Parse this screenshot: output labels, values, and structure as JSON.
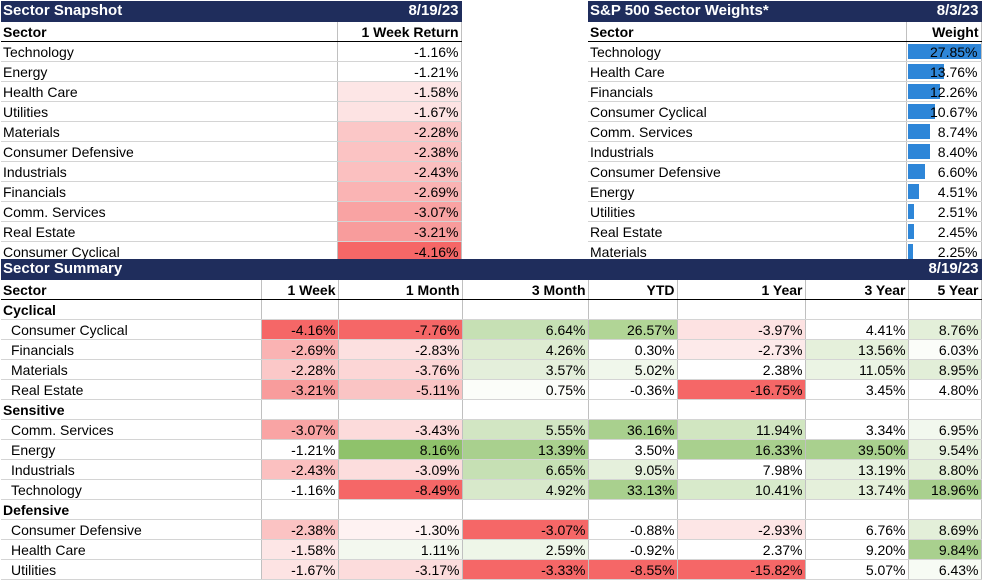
{
  "snapshot": {
    "title": "Sector Snapshot",
    "date": "8/19/23",
    "col_sector": "Sector",
    "col_return": "1 Week Return",
    "rows": [
      {
        "sector": "Technology",
        "value": "-1.16%",
        "color": "#ffffff"
      },
      {
        "sector": "Energy",
        "value": "-1.21%",
        "color": "#ffffff"
      },
      {
        "sector": "Health Care",
        "value": "-1.58%",
        "color": "#fde6e6"
      },
      {
        "sector": "Utilities",
        "value": "-1.67%",
        "color": "#fde3e3"
      },
      {
        "sector": "Materials",
        "value": "-2.28%",
        "color": "#fbc7c7"
      },
      {
        "sector": "Consumer Defensive",
        "value": "-2.38%",
        "color": "#fbc3c3"
      },
      {
        "sector": "Industrials",
        "value": "-2.43%",
        "color": "#fbc0c0"
      },
      {
        "sector": "Financials",
        "value": "-2.69%",
        "color": "#fab4b4"
      },
      {
        "sector": "Comm. Services",
        "value": "-3.07%",
        "color": "#f9a3a3"
      },
      {
        "sector": "Real Estate",
        "value": "-3.21%",
        "color": "#f89c9c"
      },
      {
        "sector": "Consumer Cyclical",
        "value": "-4.16%",
        "color": "#f56767"
      }
    ]
  },
  "weights": {
    "title": "S&P 500 Sector Weights*",
    "date": "8/3/23",
    "col_sector": "Sector",
    "col_weight": "Weight",
    "bar_color": "#2e86d8",
    "rows": [
      {
        "sector": "Technology",
        "value": "27.85%",
        "weight": 27.85
      },
      {
        "sector": "Health Care",
        "value": "13.76%",
        "weight": 13.76
      },
      {
        "sector": "Financials",
        "value": "12.26%",
        "weight": 12.26
      },
      {
        "sector": "Consumer Cyclical",
        "value": "10.67%",
        "weight": 10.67
      },
      {
        "sector": "Comm. Services",
        "value": "8.74%",
        "weight": 8.74
      },
      {
        "sector": "Industrials",
        "value": "8.40%",
        "weight": 8.4
      },
      {
        "sector": "Consumer Defensive",
        "value": "6.60%",
        "weight": 6.6
      },
      {
        "sector": "Energy",
        "value": "4.51%",
        "weight": 4.51
      },
      {
        "sector": "Utilities",
        "value": "2.51%",
        "weight": 2.51
      },
      {
        "sector": "Real Estate",
        "value": "2.45%",
        "weight": 2.45
      },
      {
        "sector": "Materials",
        "value": "2.25%",
        "weight": 2.25
      }
    ]
  },
  "summary": {
    "title": "Sector Summary",
    "date": "8/19/23",
    "columns": [
      "Sector",
      "1 Week",
      "1 Month",
      "3 Month",
      "YTD",
      "1 Year",
      "3 Year",
      "5 Year"
    ],
    "groups": [
      {
        "name": "Cyclical",
        "rows": [
          {
            "sector": "Consumer Cyclical",
            "cells": [
              {
                "v": "-4.16%",
                "c": "#f56767"
              },
              {
                "v": "-7.76%",
                "c": "#f56767"
              },
              {
                "v": "6.64%",
                "c": "#c6e0b4"
              },
              {
                "v": "26.57%",
                "c": "#b1d596"
              },
              {
                "v": "-3.97%",
                "c": "#fde2e2"
              },
              {
                "v": "4.41%",
                "c": "#ffffff"
              },
              {
                "v": "8.76%",
                "c": "#e3efd9"
              }
            ]
          },
          {
            "sector": "Financials",
            "cells": [
              {
                "v": "-2.69%",
                "c": "#fab3b3"
              },
              {
                "v": "-2.83%",
                "c": "#fce0e0"
              },
              {
                "v": "4.26%",
                "c": "#deecd2"
              },
              {
                "v": "0.30%",
                "c": "#ffffff"
              },
              {
                "v": "-2.73%",
                "c": "#fdeaea"
              },
              {
                "v": "13.56%",
                "c": "#e5f0db"
              },
              {
                "v": "6.03%",
                "c": "#fbfdf9"
              }
            ]
          },
          {
            "sector": "Materials",
            "cells": [
              {
                "v": "-2.28%",
                "c": "#fbc8c8"
              },
              {
                "v": "-3.76%",
                "c": "#fcd6d6"
              },
              {
                "v": "3.57%",
                "c": "#e4efdb"
              },
              {
                "v": "5.02%",
                "c": "#f0f7eb"
              },
              {
                "v": "2.38%",
                "c": "#ffffff"
              },
              {
                "v": "11.05%",
                "c": "#ebf4e4"
              },
              {
                "v": "8.95%",
                "c": "#e2eed8"
              }
            ]
          },
          {
            "sector": "Real Estate",
            "cells": [
              {
                "v": "-3.21%",
                "c": "#f89c9c"
              },
              {
                "v": "-5.11%",
                "c": "#fac4c4"
              },
              {
                "v": "0.75%",
                "c": "#fbfdf9"
              },
              {
                "v": "-0.36%",
                "c": "#ffffff"
              },
              {
                "v": "-16.75%",
                "c": "#f56767"
              },
              {
                "v": "3.45%",
                "c": "#ffffff"
              },
              {
                "v": "4.80%",
                "c": "#ffffff"
              }
            ]
          }
        ]
      },
      {
        "name": "Sensitive",
        "rows": [
          {
            "sector": "Comm. Services",
            "cells": [
              {
                "v": "-3.07%",
                "c": "#f9a4a4"
              },
              {
                "v": "-3.43%",
                "c": "#fcdbdb"
              },
              {
                "v": "5.55%",
                "c": "#d2e6c3"
              },
              {
                "v": "36.16%",
                "c": "#a9d08e"
              },
              {
                "v": "11.94%",
                "c": "#d1e6c1"
              },
              {
                "v": "3.34%",
                "c": "#ffffff"
              },
              {
                "v": "6.95%",
                "c": "#f2f8ee"
              }
            ]
          },
          {
            "sector": "Energy",
            "cells": [
              {
                "v": "-1.21%",
                "c": "#ffffff"
              },
              {
                "v": "8.16%",
                "c": "#8fc26b"
              },
              {
                "v": "13.39%",
                "c": "#a9d08e"
              },
              {
                "v": "3.50%",
                "c": "#ffffff"
              },
              {
                "v": "16.33%",
                "c": "#a9d08e"
              },
              {
                "v": "39.50%",
                "c": "#a9d08e"
              },
              {
                "v": "9.54%",
                "c": "#e8f2e0"
              }
            ]
          },
          {
            "sector": "Industrials",
            "cells": [
              {
                "v": "-2.43%",
                "c": "#fbc0c0"
              },
              {
                "v": "-3.09%",
                "c": "#fcdddd"
              },
              {
                "v": "6.65%",
                "c": "#c6e0b4"
              },
              {
                "v": "9.05%",
                "c": "#e5f0dc"
              },
              {
                "v": "7.98%",
                "c": "#ffffff"
              },
              {
                "v": "13.19%",
                "c": "#e7f1df"
              },
              {
                "v": "8.80%",
                "c": "#e3efd9"
              }
            ]
          },
          {
            "sector": "Technology",
            "cells": [
              {
                "v": "-1.16%",
                "c": "#ffffff"
              },
              {
                "v": "-8.49%",
                "c": "#f56767"
              },
              {
                "v": "4.92%",
                "c": "#d8e9cb"
              },
              {
                "v": "33.13%",
                "c": "#a9d08e"
              },
              {
                "v": "10.41%",
                "c": "#d8eacb"
              },
              {
                "v": "13.74%",
                "c": "#e5f0db"
              },
              {
                "v": "18.96%",
                "c": "#a9d08e"
              }
            ]
          }
        ]
      },
      {
        "name": "Defensive",
        "rows": [
          {
            "sector": "Consumer Defensive",
            "cells": [
              {
                "v": "-2.38%",
                "c": "#fbc3c3"
              },
              {
                "v": "-1.30%",
                "c": "#fef2f2"
              },
              {
                "v": "-3.07%",
                "c": "#f56767"
              },
              {
                "v": "-0.88%",
                "c": "#ffffff"
              },
              {
                "v": "-2.93%",
                "c": "#fde6e6"
              },
              {
                "v": "6.76%",
                "c": "#ffffff"
              },
              {
                "v": "8.69%",
                "c": "#e3efd9"
              }
            ]
          },
          {
            "sector": "Health Care",
            "cells": [
              {
                "v": "-1.58%",
                "c": "#fde6e6"
              },
              {
                "v": "1.11%",
                "c": "#f3f8ef"
              },
              {
                "v": "2.59%",
                "c": "#eef6e8"
              },
              {
                "v": "-0.92%",
                "c": "#ffffff"
              },
              {
                "v": "2.37%",
                "c": "#ffffff"
              },
              {
                "v": "9.20%",
                "c": "#ffffff"
              },
              {
                "v": "9.84%",
                "c": "#a9d08e"
              }
            ]
          },
          {
            "sector": "Utilities",
            "cells": [
              {
                "v": "-1.67%",
                "c": "#fde3e3"
              },
              {
                "v": "-3.17%",
                "c": "#fcdcdc"
              },
              {
                "v": "-3.33%",
                "c": "#f56767"
              },
              {
                "v": "-8.55%",
                "c": "#f56767"
              },
              {
                "v": "-15.82%",
                "c": "#f56767"
              },
              {
                "v": "5.07%",
                "c": "#ffffff"
              },
              {
                "v": "6.43%",
                "c": "#f7fbf4"
              }
            ]
          }
        ]
      }
    ]
  }
}
